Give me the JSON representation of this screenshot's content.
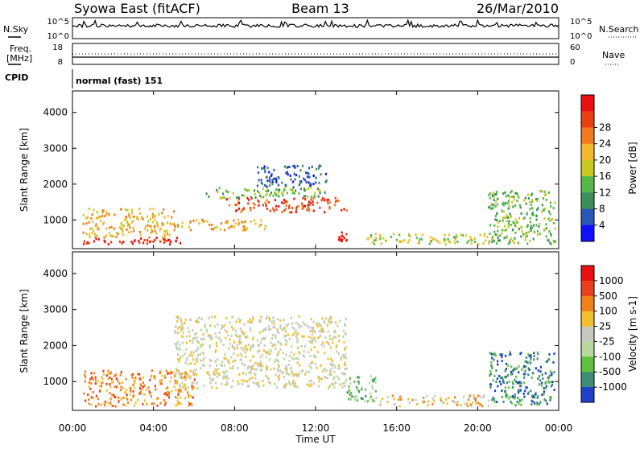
{
  "header": {
    "station": "Syowa East (fitACF)",
    "beam": "Beam 13",
    "date": "26/Mar/2010"
  },
  "aux_labels": {
    "nsky": "N.Sky",
    "nsky_top": "10^5",
    "nsky_bottom": "10^0",
    "nsearch": "N.Search",
    "nsearch_top": "10^5",
    "nsearch_bottom": "10^0",
    "freq": "Freq.",
    "freq_unit": "[MHz]",
    "freq_top": "18",
    "freq_bottom": "8",
    "nave": "Nave",
    "nave_top": "60",
    "nave_bottom": "0",
    "cpid": "CPID",
    "cpid_value": "normal (fast) 151"
  },
  "chart_data": [
    {
      "type": "heatmap",
      "title": "",
      "xlabel": "Time UT",
      "ylabel": "Slant Range [km]",
      "x_ticks": [
        "00:00",
        "04:00",
        "08:00",
        "12:00",
        "16:00",
        "20:00",
        "00:00"
      ],
      "y_ticks": [
        "1000",
        "2000",
        "3000",
        "4000"
      ],
      "xlim_hours": [
        0,
        24
      ],
      "ylim_km": [
        200,
        4600
      ],
      "colorbar": {
        "label": "Power [dB]",
        "ticks": [
          "4",
          "8",
          "12",
          "16",
          "20",
          "24",
          "28"
        ],
        "colors": [
          "#1010ff",
          "#2a56b8",
          "#3e8e5a",
          "#55b84a",
          "#c8c820",
          "#f4b830",
          "#f07a20",
          "#e84010",
          "#e81010"
        ]
      },
      "regions": [
        {
          "t0": 0.5,
          "t1": 5.5,
          "r0": 300,
          "r1": 500,
          "level": 8
        },
        {
          "t0": 0.5,
          "t1": 5.0,
          "r0": 500,
          "r1": 1300,
          "level": 5
        },
        {
          "t0": 5.0,
          "t1": 9.5,
          "r0": 700,
          "r1": 1000,
          "level": 5
        },
        {
          "t0": 7.5,
          "t1": 13.5,
          "r0": 1200,
          "r1": 1600,
          "level": 7
        },
        {
          "t0": 6.5,
          "t1": 12.5,
          "r0": 1600,
          "r1": 1900,
          "level": 3
        },
        {
          "t0": 9.0,
          "t1": 12.5,
          "r0": 1900,
          "r1": 2500,
          "level": 1
        },
        {
          "t0": 13.0,
          "t1": 13.8,
          "r0": 300,
          "r1": 700,
          "level": 8
        },
        {
          "t0": 14.5,
          "t1": 21.0,
          "r0": 300,
          "r1": 600,
          "level": 4
        },
        {
          "t0": 20.5,
          "t1": 23.8,
          "r0": 300,
          "r1": 1800,
          "level": 3
        }
      ]
    },
    {
      "type": "heatmap",
      "title": "",
      "xlabel": "Time UT",
      "ylabel": "Slant Range [km]",
      "x_ticks": [
        "00:00",
        "04:00",
        "08:00",
        "12:00",
        "16:00",
        "20:00",
        "00:00"
      ],
      "y_ticks": [
        "1000",
        "2000",
        "3000",
        "4000"
      ],
      "xlim_hours": [
        0,
        24
      ],
      "ylim_km": [
        200,
        4600
      ],
      "colorbar": {
        "label": "Velocity [m s-1]",
        "ticks": [
          "1000",
          "500",
          "100",
          "25",
          "-25",
          "-100",
          "-500",
          "-1000"
        ],
        "colors": [
          "#2040c8",
          "#3c8c78",
          "#60c040",
          "#b8d8a0",
          "#c8c8c0",
          "#f0c030",
          "#f08018",
          "#e84020",
          "#e81010"
        ]
      },
      "regions": [
        {
          "t0": 0.5,
          "t1": 6.0,
          "r0": 300,
          "r1": 1300,
          "level": 6
        },
        {
          "t0": 5.0,
          "t1": 13.5,
          "r0": 800,
          "r1": 2800,
          "level": 4
        },
        {
          "t0": 13.5,
          "t1": 15.0,
          "r0": 400,
          "r1": 1200,
          "level": 2
        },
        {
          "t0": 15.0,
          "t1": 20.5,
          "r0": 300,
          "r1": 600,
          "level": 5
        },
        {
          "t0": 20.5,
          "t1": 23.8,
          "r0": 300,
          "r1": 1800,
          "level": 1
        }
      ]
    }
  ]
}
